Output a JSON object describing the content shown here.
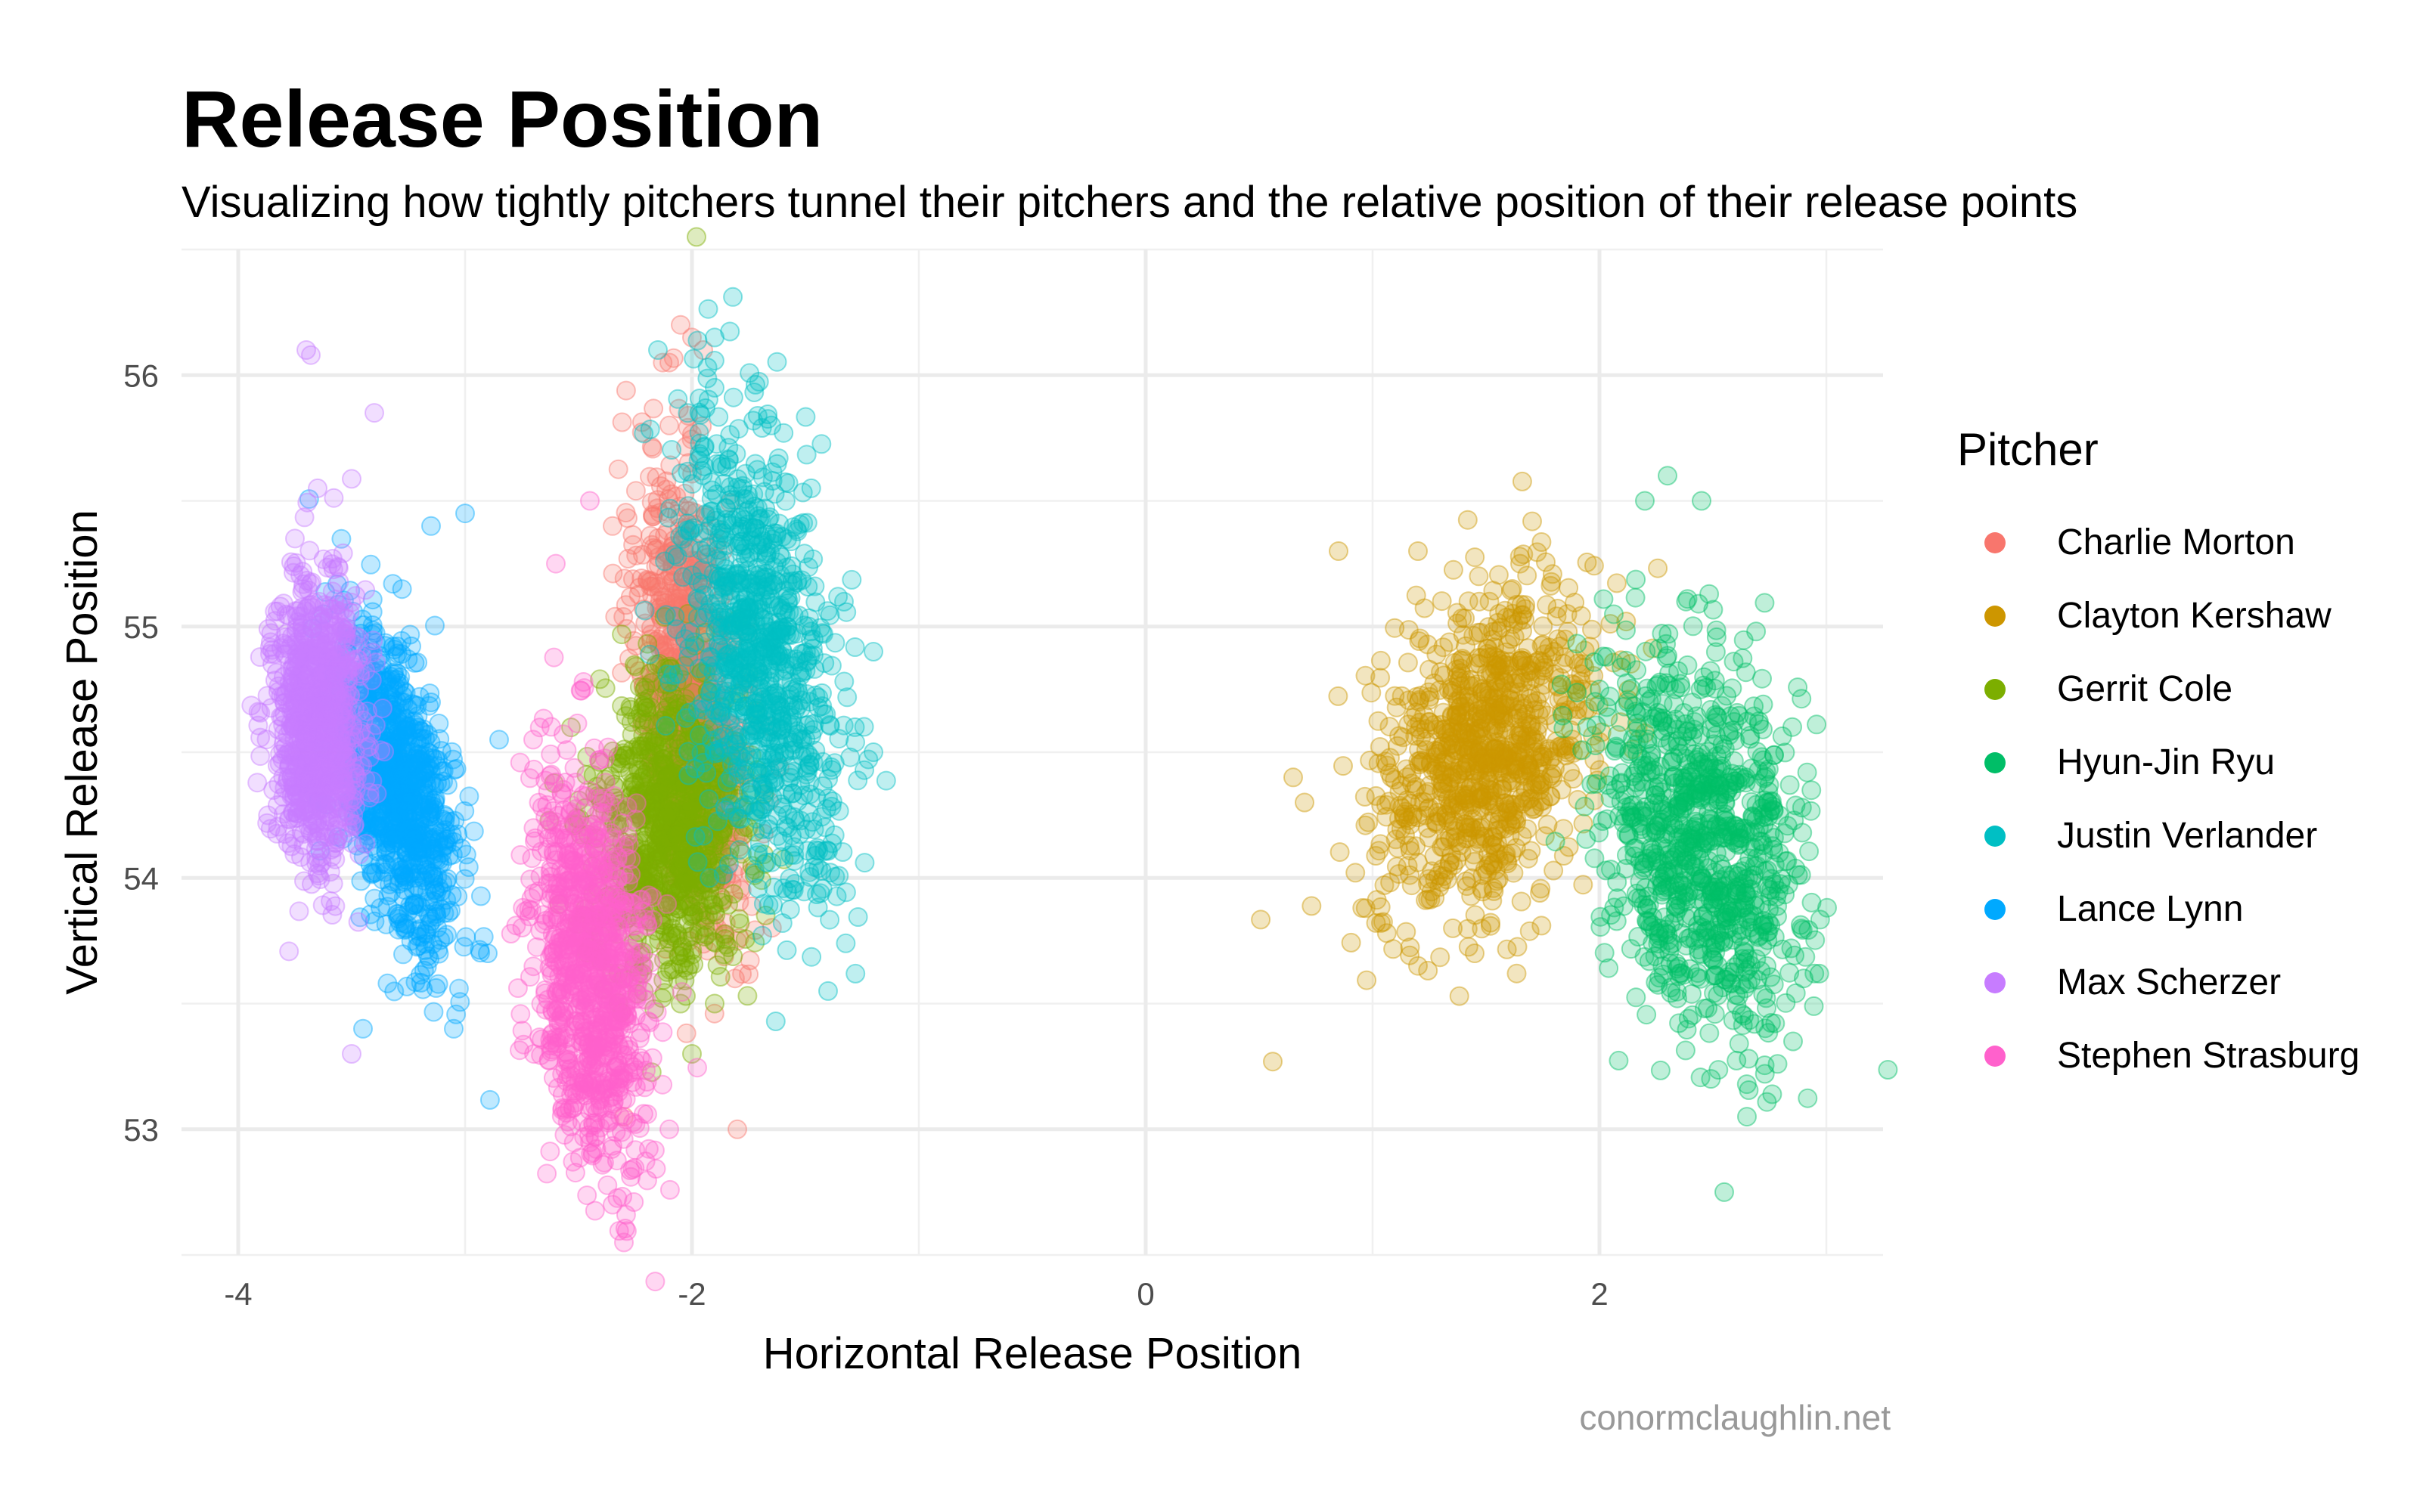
{
  "title": "Release Position",
  "subtitle": "Visualizing how tightly pitchers tunnel their pitchers and the relative position of their release points",
  "caption": "conormclaughlin.net",
  "legend_title": "Pitcher",
  "chart_data": {
    "type": "scatter",
    "title": "Release Position",
    "subtitle": "Visualizing how tightly pitchers tunnel their pitchers and the relative position of their release points",
    "xlabel": "Horizontal Release Position",
    "ylabel": "Vertical Release Position",
    "xlim": [
      -4.25,
      3.25
    ],
    "ylim": [
      52.5,
      56.5
    ],
    "xticks": [
      -4,
      -2,
      0,
      2
    ],
    "yticks": [
      53,
      54,
      55,
      56
    ],
    "grid": true,
    "legend_position": "right",
    "point_alpha": 0.25,
    "series": [
      {
        "name": "Charlie Morton",
        "color": "#F8766D",
        "cluster": {
          "x_mean": -2.0,
          "x_sd": 0.12,
          "y_mean": 54.7,
          "y_sd": 0.45,
          "xy_corr": -0.4
        },
        "points": [
          [
            -2.05,
            56.2
          ],
          [
            -2.0,
            56.15
          ],
          [
            -2.1,
            56.05
          ],
          [
            -1.95,
            56.1
          ],
          [
            -2.1,
            55.8
          ],
          [
            -1.8,
            53.0
          ],
          [
            -2.3,
            53.05
          ],
          [
            -2.35,
            55.4
          ]
        ]
      },
      {
        "name": "Clayton Kershaw",
        "color": "#CD9600",
        "cluster": {
          "x_mean": 1.5,
          "x_sd": 0.24,
          "y_mean": 54.5,
          "y_sd": 0.32,
          "xy_corr": 0.3
        },
        "points": [
          [
            0.65,
            54.4
          ],
          [
            0.85,
            55.3
          ],
          [
            1.2,
            55.3
          ],
          [
            1.2,
            53.65
          ],
          [
            1.45,
            53.7
          ],
          [
            1.65,
            55.25
          ],
          [
            1.8,
            54.9
          ],
          [
            0.7,
            54.3
          ]
        ]
      },
      {
        "name": "Gerrit Cole",
        "color": "#7CAE00",
        "cluster": {
          "x_mean": -2.1,
          "x_sd": 0.16,
          "y_mean": 54.2,
          "y_sd": 0.3,
          "xy_corr": 0.0
        },
        "points": [
          [
            -1.98,
            56.55
          ],
          [
            -1.9,
            53.5
          ],
          [
            -2.3,
            53.6
          ],
          [
            -2.05,
            53.5
          ],
          [
            -2.0,
            53.3
          ]
        ]
      },
      {
        "name": "Hyun-Jin Ryu",
        "color": "#00BE67",
        "cluster": {
          "x_mean": 2.45,
          "x_sd": 0.22,
          "y_mean": 54.15,
          "y_sd": 0.38,
          "xy_corr": -0.3
        },
        "points": [
          [
            2.3,
            55.6
          ],
          [
            2.2,
            55.5
          ],
          [
            2.45,
            55.5
          ],
          [
            2.55,
            52.75
          ],
          [
            2.65,
            53.05
          ],
          [
            2.0,
            54.75
          ],
          [
            2.9,
            53.6
          ],
          [
            2.85,
            54.6
          ]
        ]
      },
      {
        "name": "Justin Verlander",
        "color": "#00BFC4",
        "cluster": {
          "x_mean": -1.7,
          "x_sd": 0.18,
          "y_mean": 54.9,
          "y_sd": 0.45,
          "xy_corr": -0.4
        },
        "points": [
          [
            -1.9,
            56.15
          ],
          [
            -2.15,
            56.1
          ],
          [
            -1.2,
            54.9
          ],
          [
            -1.2,
            54.5
          ],
          [
            -1.4,
            53.55
          ],
          [
            -1.9,
            55.95
          ],
          [
            -1.65,
            55.8
          ]
        ]
      },
      {
        "name": "Lance Lynn",
        "color": "#00A9FF",
        "cluster": {
          "x_mean": -3.3,
          "x_sd": 0.13,
          "y_mean": 54.35,
          "y_sd": 0.32,
          "xy_corr": -0.5
        },
        "points": [
          [
            -3.0,
            55.45
          ],
          [
            -3.15,
            55.4
          ],
          [
            -2.85,
            54.55
          ],
          [
            -3.05,
            53.4
          ],
          [
            -3.45,
            53.4
          ],
          [
            -2.9,
            53.7
          ]
        ]
      },
      {
        "name": "Max Scherzer",
        "color": "#C77CFF",
        "cluster": {
          "x_mean": -3.65,
          "x_sd": 0.1,
          "y_mean": 54.6,
          "y_sd": 0.28,
          "xy_corr": 0.0
        },
        "points": [
          [
            -3.7,
            56.1
          ],
          [
            -3.68,
            56.08
          ],
          [
            -3.4,
            55.85
          ],
          [
            -3.65,
            55.55
          ],
          [
            -3.85,
            54.85
          ],
          [
            -3.5,
            53.3
          ],
          [
            -3.75,
            55.35
          ]
        ]
      },
      {
        "name": "Stephen Strasburg",
        "color": "#FF61CC",
        "cluster": {
          "x_mean": -2.45,
          "x_sd": 0.13,
          "y_mean": 53.65,
          "y_sd": 0.38,
          "xy_corr": -0.3
        },
        "points": [
          [
            -2.3,
            52.55
          ],
          [
            -2.35,
            52.7
          ],
          [
            -2.45,
            55.5
          ],
          [
            -2.6,
            55.25
          ],
          [
            -2.1,
            53.0
          ],
          [
            -2.7,
            54.55
          ]
        ]
      }
    ]
  }
}
